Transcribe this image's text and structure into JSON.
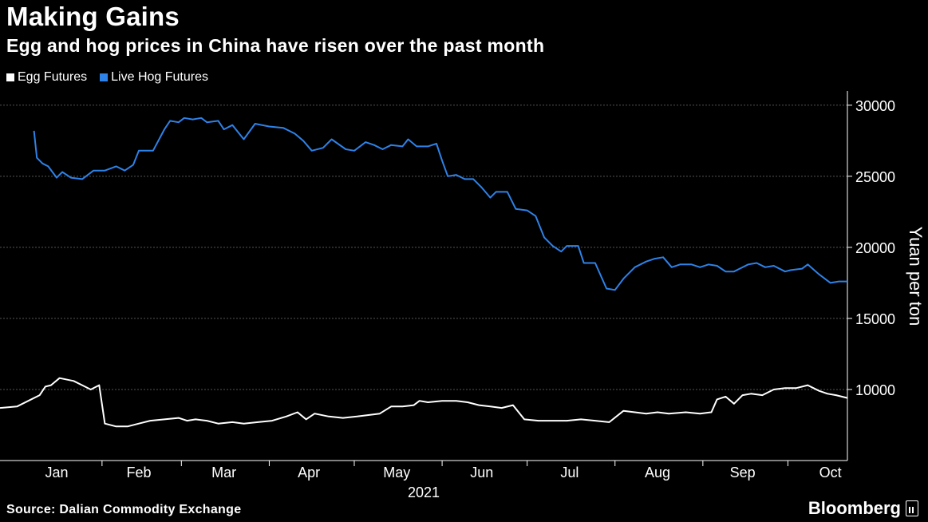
{
  "header": {
    "title": "Making Gains",
    "subtitle": "Egg and hog prices in China have risen over the past month"
  },
  "footer": {
    "source": "Source: Dalian Commodity Exchange",
    "brand": "Bloomberg"
  },
  "colors": {
    "background": "#000000",
    "egg": "#ffffff",
    "hog": "#2e82e8",
    "grid": "#555555",
    "axis": "#ffffff"
  },
  "chart_data": {
    "type": "line",
    "title": "Making Gains",
    "subtitle": "Egg and hog prices in China have risen over the past month",
    "ylabel": "Yuan per ton",
    "xlabel": "",
    "year_label": "2021",
    "ylim": [
      5000,
      31000
    ],
    "yticks": [
      10000,
      15000,
      20000,
      25000,
      30000
    ],
    "xlim": [
      "2020-12-27",
      "2021-10-22"
    ],
    "x_tick_labels": [
      {
        "label": "Jan",
        "date": "2021-01-16"
      },
      {
        "label": "Feb",
        "date": "2021-02-14"
      },
      {
        "label": "Mar",
        "date": "2021-03-16"
      },
      {
        "label": "Apr",
        "date": "2021-04-15"
      },
      {
        "label": "May",
        "date": "2021-05-16"
      },
      {
        "label": "Jun",
        "date": "2021-06-15"
      },
      {
        "label": "Jul",
        "date": "2021-07-16"
      },
      {
        "label": "Aug",
        "date": "2021-08-16"
      },
      {
        "label": "Sep",
        "date": "2021-09-15"
      },
      {
        "label": "Oct",
        "date": "2021-10-16"
      }
    ],
    "month_boundaries": [
      "2021-02-01",
      "2021-03-01",
      "2021-04-01",
      "2021-05-01",
      "2021-06-01",
      "2021-07-01",
      "2021-08-01",
      "2021-09-01",
      "2021-10-01"
    ],
    "grid": true,
    "legend_position": "top-left",
    "series": [
      {
        "name": "Live Hog Futures",
        "color": "#2e82e8",
        "points": [
          [
            "2021-01-08",
            28200
          ],
          [
            "2021-01-09",
            26300
          ],
          [
            "2021-01-11",
            25900
          ],
          [
            "2021-01-13",
            25700
          ],
          [
            "2021-01-16",
            24900
          ],
          [
            "2021-01-18",
            25300
          ],
          [
            "2021-01-21",
            24900
          ],
          [
            "2021-01-25",
            24800
          ],
          [
            "2021-01-29",
            25400
          ],
          [
            "2021-02-02",
            25400
          ],
          [
            "2021-02-06",
            25700
          ],
          [
            "2021-02-09",
            25400
          ],
          [
            "2021-02-12",
            25800
          ],
          [
            "2021-02-14",
            26800
          ],
          [
            "2021-02-19",
            26800
          ],
          [
            "2021-02-23",
            28300
          ],
          [
            "2021-02-25",
            28900
          ],
          [
            "2021-02-28",
            28800
          ],
          [
            "2021-03-02",
            29100
          ],
          [
            "2021-03-05",
            29000
          ],
          [
            "2021-03-08",
            29100
          ],
          [
            "2021-03-10",
            28800
          ],
          [
            "2021-03-14",
            28900
          ],
          [
            "2021-03-16",
            28300
          ],
          [
            "2021-03-19",
            28600
          ],
          [
            "2021-03-23",
            27600
          ],
          [
            "2021-03-27",
            28700
          ],
          [
            "2021-04-01",
            28500
          ],
          [
            "2021-04-06",
            28400
          ],
          [
            "2021-04-10",
            28000
          ],
          [
            "2021-04-13",
            27500
          ],
          [
            "2021-04-16",
            26800
          ],
          [
            "2021-04-20",
            27000
          ],
          [
            "2021-04-23",
            27600
          ],
          [
            "2021-04-28",
            26900
          ],
          [
            "2021-05-01",
            26800
          ],
          [
            "2021-05-05",
            27400
          ],
          [
            "2021-05-08",
            27200
          ],
          [
            "2021-05-11",
            26900
          ],
          [
            "2021-05-14",
            27200
          ],
          [
            "2021-05-18",
            27100
          ],
          [
            "2021-05-20",
            27600
          ],
          [
            "2021-05-23",
            27100
          ],
          [
            "2021-05-27",
            27100
          ],
          [
            "2021-05-30",
            27300
          ],
          [
            "2021-06-01",
            26100
          ],
          [
            "2021-06-03",
            25000
          ],
          [
            "2021-06-06",
            25100
          ],
          [
            "2021-06-09",
            24800
          ],
          [
            "2021-06-12",
            24800
          ],
          [
            "2021-06-15",
            24200
          ],
          [
            "2021-06-18",
            23500
          ],
          [
            "2021-06-20",
            23900
          ],
          [
            "2021-06-24",
            23900
          ],
          [
            "2021-06-27",
            22700
          ],
          [
            "2021-07-01",
            22600
          ],
          [
            "2021-07-04",
            22200
          ],
          [
            "2021-07-07",
            20700
          ],
          [
            "2021-07-10",
            20100
          ],
          [
            "2021-07-13",
            19700
          ],
          [
            "2021-07-15",
            20100
          ],
          [
            "2021-07-19",
            20100
          ],
          [
            "2021-07-21",
            18900
          ],
          [
            "2021-07-25",
            18900
          ],
          [
            "2021-07-29",
            17100
          ],
          [
            "2021-08-01",
            17000
          ],
          [
            "2021-08-04",
            17800
          ],
          [
            "2021-08-08",
            18600
          ],
          [
            "2021-08-12",
            19000
          ],
          [
            "2021-08-15",
            19200
          ],
          [
            "2021-08-18",
            19300
          ],
          [
            "2021-08-21",
            18600
          ],
          [
            "2021-08-24",
            18800
          ],
          [
            "2021-08-28",
            18800
          ],
          [
            "2021-08-31",
            18600
          ],
          [
            "2021-09-03",
            18800
          ],
          [
            "2021-09-06",
            18700
          ],
          [
            "2021-09-09",
            18300
          ],
          [
            "2021-09-12",
            18300
          ],
          [
            "2021-09-14",
            18500
          ],
          [
            "2021-09-17",
            18800
          ],
          [
            "2021-09-20",
            18900
          ],
          [
            "2021-09-23",
            18600
          ],
          [
            "2021-09-26",
            18700
          ],
          [
            "2021-09-30",
            18300
          ],
          [
            "2021-10-02",
            18400
          ],
          [
            "2021-10-06",
            18500
          ],
          [
            "2021-10-08",
            18800
          ],
          [
            "2021-10-12",
            18100
          ],
          [
            "2021-10-16",
            17500
          ],
          [
            "2021-10-19",
            17600
          ],
          [
            "2021-10-22",
            17600
          ]
        ]
      },
      {
        "name": "Egg Futures",
        "color": "#ffffff",
        "points": [
          [
            "2020-12-27",
            8700
          ],
          [
            "2021-01-02",
            8800
          ],
          [
            "2021-01-06",
            9200
          ],
          [
            "2021-01-10",
            9600
          ],
          [
            "2021-01-12",
            10200
          ],
          [
            "2021-01-14",
            10300
          ],
          [
            "2021-01-17",
            10800
          ],
          [
            "2021-01-22",
            10600
          ],
          [
            "2021-01-25",
            10300
          ],
          [
            "2021-01-28",
            10000
          ],
          [
            "2021-01-31",
            10300
          ],
          [
            "2021-02-02",
            7600
          ],
          [
            "2021-02-06",
            7400
          ],
          [
            "2021-02-10",
            7400
          ],
          [
            "2021-02-14",
            7600
          ],
          [
            "2021-02-18",
            7800
          ],
          [
            "2021-02-23",
            7900
          ],
          [
            "2021-02-28",
            8000
          ],
          [
            "2021-03-03",
            7800
          ],
          [
            "2021-03-06",
            7900
          ],
          [
            "2021-03-10",
            7800
          ],
          [
            "2021-03-14",
            7600
          ],
          [
            "2021-03-19",
            7700
          ],
          [
            "2021-03-23",
            7600
          ],
          [
            "2021-03-28",
            7700
          ],
          [
            "2021-04-02",
            7800
          ],
          [
            "2021-04-07",
            8100
          ],
          [
            "2021-04-11",
            8400
          ],
          [
            "2021-04-14",
            7900
          ],
          [
            "2021-04-17",
            8300
          ],
          [
            "2021-04-22",
            8100
          ],
          [
            "2021-04-27",
            8000
          ],
          [
            "2021-05-02",
            8100
          ],
          [
            "2021-05-06",
            8200
          ],
          [
            "2021-05-10",
            8300
          ],
          [
            "2021-05-14",
            8800
          ],
          [
            "2021-05-18",
            8800
          ],
          [
            "2021-05-22",
            8900
          ],
          [
            "2021-05-24",
            9200
          ],
          [
            "2021-05-27",
            9100
          ],
          [
            "2021-06-01",
            9200
          ],
          [
            "2021-06-06",
            9200
          ],
          [
            "2021-06-10",
            9100
          ],
          [
            "2021-06-14",
            8900
          ],
          [
            "2021-06-18",
            8800
          ],
          [
            "2021-06-22",
            8700
          ],
          [
            "2021-06-26",
            8900
          ],
          [
            "2021-06-30",
            7900
          ],
          [
            "2021-07-05",
            7800
          ],
          [
            "2021-07-10",
            7800
          ],
          [
            "2021-07-15",
            7800
          ],
          [
            "2021-07-20",
            7900
          ],
          [
            "2021-07-25",
            7800
          ],
          [
            "2021-07-30",
            7700
          ],
          [
            "2021-08-04",
            8500
          ],
          [
            "2021-08-08",
            8400
          ],
          [
            "2021-08-12",
            8300
          ],
          [
            "2021-08-16",
            8400
          ],
          [
            "2021-08-20",
            8300
          ],
          [
            "2021-08-26",
            8400
          ],
          [
            "2021-08-31",
            8300
          ],
          [
            "2021-09-04",
            8400
          ],
          [
            "2021-09-06",
            9300
          ],
          [
            "2021-09-09",
            9500
          ],
          [
            "2021-09-12",
            9000
          ],
          [
            "2021-09-15",
            9600
          ],
          [
            "2021-09-18",
            9700
          ],
          [
            "2021-09-22",
            9600
          ],
          [
            "2021-09-26",
            10000
          ],
          [
            "2021-09-30",
            10100
          ],
          [
            "2021-10-04",
            10100
          ],
          [
            "2021-10-08",
            10300
          ],
          [
            "2021-10-12",
            9900
          ],
          [
            "2021-10-15",
            9700
          ],
          [
            "2021-10-18",
            9600
          ],
          [
            "2021-10-22",
            9400
          ]
        ]
      }
    ]
  }
}
